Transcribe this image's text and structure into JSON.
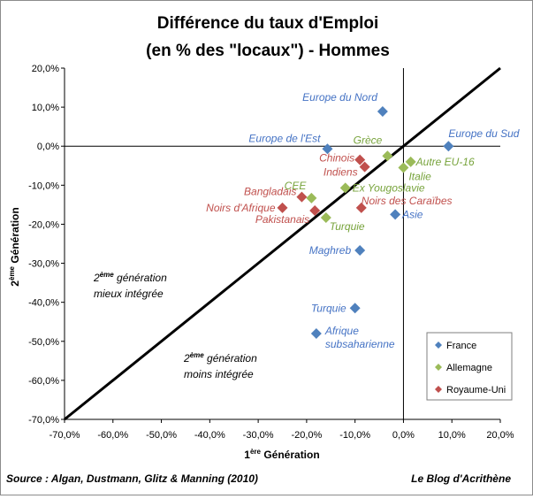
{
  "chart_data": {
    "type": "scatter",
    "title": [
      "Différence du taux d'Emploi",
      "(en % des \"locaux\") - Hommes"
    ],
    "xlabel": {
      "pre": "1",
      "sup": "ère",
      "post": " Génération"
    },
    "ylabel": {
      "pre": "2",
      "sup": "ème",
      "post": " Génération"
    },
    "xlim": [
      -0.7,
      0.2
    ],
    "ylim": [
      -0.7,
      0.2
    ],
    "xticks": [
      -0.7,
      -0.6,
      -0.5,
      -0.4,
      -0.3,
      -0.2,
      -0.1,
      0.0,
      0.1,
      0.2
    ],
    "yticks": [
      0.2,
      0.1,
      0.0,
      -0.1,
      -0.2,
      -0.3,
      -0.4,
      -0.5,
      -0.6,
      -0.7
    ],
    "xtick_labels": [
      "-70,0%",
      "-60,0%",
      "-50,0%",
      "-40,0%",
      "-30,0%",
      "-20,0%",
      "-10,0%",
      "0,0%",
      "10,0%",
      "20,0%"
    ],
    "ytick_labels": [
      "20,0%",
      "10,0%",
      "0,0%",
      "-10,0%",
      "-20,0%",
      "-30,0%",
      "-40,0%",
      "-50,0%",
      "-60,0%",
      "-70,0%"
    ],
    "diagonal": "y = x",
    "grid": false,
    "legend_position": "bottom-right",
    "series": [
      {
        "name": "France",
        "color": "#4f81bd",
        "label_color": "#4472c4",
        "points": [
          {
            "label": "Europe du Nord",
            "x": -0.043,
            "y": 0.089
          },
          {
            "label": "Europe du Sud",
            "x": 0.093,
            "y": 0.0
          },
          {
            "label": "Europe de l'Est",
            "x": -0.157,
            "y": -0.007
          },
          {
            "label": "Asie",
            "x": -0.017,
            "y": -0.175
          },
          {
            "label": "Maghreb",
            "x": -0.09,
            "y": -0.267
          },
          {
            "label": "Turquie",
            "x": -0.1,
            "y": -0.415
          },
          {
            "label": "Afrique\nsubsaharienne",
            "x": -0.18,
            "y": -0.48
          }
        ]
      },
      {
        "name": "Allemagne",
        "color": "#9bbb59",
        "label_color": "#77a33b",
        "points": [
          {
            "label": "Grèce",
            "x": -0.033,
            "y": -0.025
          },
          {
            "label": "Autre EU-16",
            "x": 0.015,
            "y": -0.04
          },
          {
            "label": "Italie",
            "x": 0.0,
            "y": -0.055
          },
          {
            "label": "Ex Yougoslavie",
            "x": -0.12,
            "y": -0.107
          },
          {
            "label": "CEE",
            "x": -0.19,
            "y": -0.133
          },
          {
            "label": "Turquie",
            "x": -0.16,
            "y": -0.183
          }
        ]
      },
      {
        "name": "Royaume-Uni",
        "color": "#c0504d",
        "label_color": "#c0504d",
        "points": [
          {
            "label": "Chinois",
            "x": -0.09,
            "y": -0.035
          },
          {
            "label": "Indiens",
            "x": -0.08,
            "y": -0.053
          },
          {
            "label": "Bangladais",
            "x": -0.21,
            "y": -0.13
          },
          {
            "label": "Noirs des Caraïbes",
            "x": -0.087,
            "y": -0.158
          },
          {
            "label": "Noirs d'Afrique",
            "x": -0.25,
            "y": -0.158
          },
          {
            "label": "Pakistanais",
            "x": -0.183,
            "y": -0.165
          }
        ]
      }
    ],
    "annotations": [
      {
        "pre": "2",
        "sup": "ème",
        "post": " génération",
        "line2": "mieux intégrée"
      },
      {
        "pre": "2",
        "sup": "ème",
        "post": " génération",
        "line2": "moins intégrée"
      }
    ]
  },
  "footer": {
    "source": "Source : Algan, Dustmann, Glitz & Manning (2010)",
    "credit": "Le Blog d'Acrithène"
  }
}
